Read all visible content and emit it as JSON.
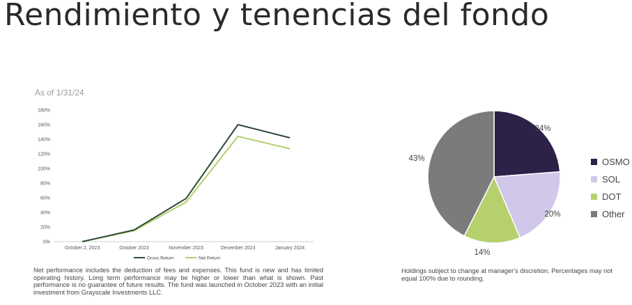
{
  "title": "Rendimiento y tenencias del fondo",
  "as_of": "As of 1/31/24",
  "performance_note": "Net performance includes the deduction of fees and expenses. This fund is new and has limited operating history. Long term performance may be higher or lower than what is shown. Past performance is no guarantee of future results. The fund was launched in October 2023 with an initial investment from Grayscale Investments LLC.",
  "holdings_note": "Holdings subject to change at manager's discretion.  Percentages may not equal 100% due to rounding.",
  "chart_data": [
    {
      "type": "line",
      "categories": [
        "October 2, 2023",
        "October 2023",
        "November 2023",
        "December 2023",
        "January 2024"
      ],
      "y_ticks": [
        "0%",
        "20%",
        "40%",
        "60%",
        "80%",
        "100%",
        "120%",
        "140%",
        "160%",
        "180%"
      ],
      "ylim": [
        0,
        180
      ],
      "grid": false,
      "legend_position": "bottom",
      "series": [
        {
          "name": "Gross Return",
          "color": "#2b4a34",
          "values": [
            0,
            16,
            59,
            160,
            142
          ]
        },
        {
          "name": "Net Return",
          "color": "#b3cf6c",
          "values": [
            0,
            15,
            54,
            144,
            127
          ]
        }
      ]
    },
    {
      "type": "pie",
      "legend_position": "right",
      "slices": [
        {
          "label": "OSMO",
          "value": 24,
          "display": "24%",
          "color": "#2d2148"
        },
        {
          "label": "SOL",
          "value": 20,
          "display": "20%",
          "color": "#d1c7e9"
        },
        {
          "label": "DOT",
          "value": 14,
          "display": "14%",
          "color": "#b7d06e"
        },
        {
          "label": "Other",
          "value": 43,
          "display": "43%",
          "color": "#7b7b7b"
        }
      ]
    }
  ]
}
